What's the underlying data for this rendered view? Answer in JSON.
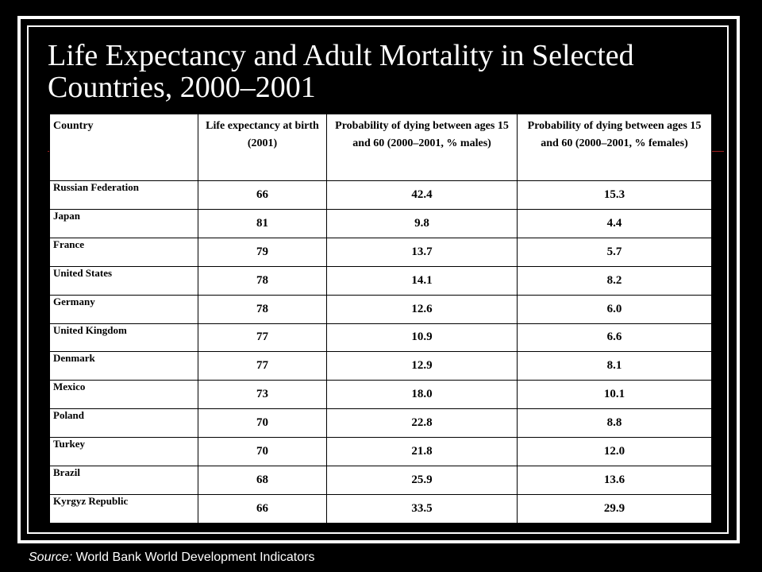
{
  "slide": {
    "title": "Life Expectancy and Adult Mortality in Selected Countries, 2000–2001",
    "source_label": "Source:",
    "source_text": " World Bank World Development Indicators"
  },
  "table": {
    "headers": [
      "Country",
      "Life expectancy at birth (2001)",
      "Probability of dying between ages 15 and 60 (2000–2001, % males)",
      "Probability of dying between ages 15 and 60 (2000–2001, % females)"
    ],
    "rows": [
      [
        "Russian Federation",
        "66",
        "42.4",
        "15.3"
      ],
      [
        "Japan",
        "81",
        "9.8",
        "4.4"
      ],
      [
        "France",
        "79",
        "13.7",
        "5.7"
      ],
      [
        "United States",
        "78",
        "14.1",
        "8.2"
      ],
      [
        "Germany",
        "78",
        "12.6",
        "6.0"
      ],
      [
        "United Kingdom",
        "77",
        "10.9",
        "6.6"
      ],
      [
        "Denmark",
        "77",
        "12.9",
        "8.1"
      ],
      [
        "Mexico",
        "73",
        "18.0",
        "10.1"
      ],
      [
        "Poland",
        "70",
        "22.8",
        "8.8"
      ],
      [
        "Turkey",
        "70",
        "21.8",
        "12.0"
      ],
      [
        "Brazil",
        "68",
        "25.9",
        "13.6"
      ],
      [
        "Kyrgyz Republic",
        "66",
        "33.5",
        "29.9"
      ]
    ]
  },
  "colors": {
    "background": "#000000",
    "frame": "#ffffff",
    "accent_line": "#a02020",
    "table_bg": "#ffffff"
  }
}
